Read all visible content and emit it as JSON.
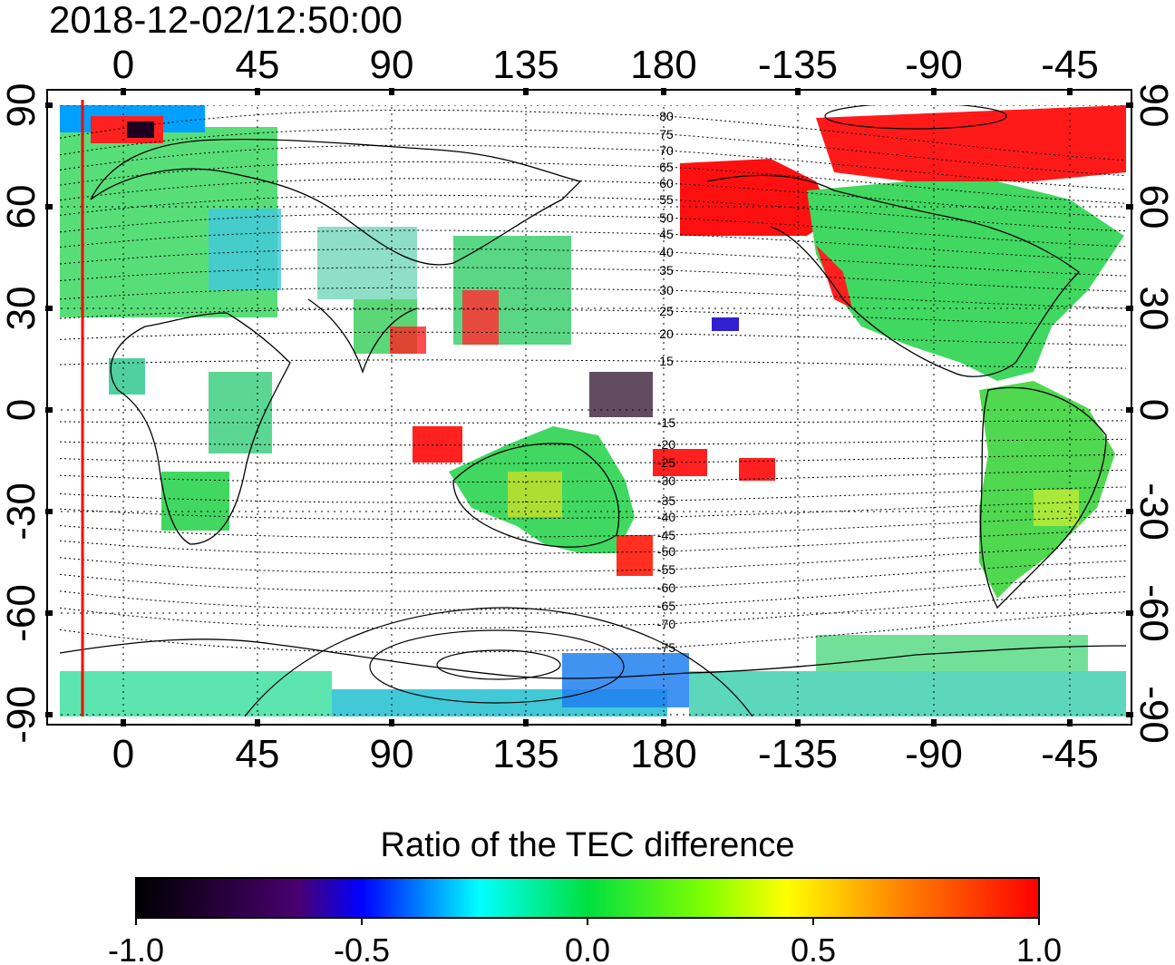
{
  "timestamp": "2018-12-02/12:50:00",
  "map": {
    "lon_tick_labels": [
      "0",
      "45",
      "90",
      "135",
      "180",
      "-135",
      "-90",
      "-45"
    ],
    "lat_tick_labels": [
      "90",
      "60",
      "30",
      "0",
      "-30",
      "-60",
      "-90"
    ],
    "magnetic_lat_labels": [
      "80",
      "75",
      "70",
      "65",
      "60",
      "55",
      "50",
      "45",
      "40",
      "35",
      "30",
      "25",
      "20",
      "15",
      "-15",
      "-20",
      "-25",
      "-30",
      "-35",
      "-40",
      "-45",
      "-50",
      "-55",
      "-60",
      "-65",
      "-70",
      "-75"
    ],
    "terminator_color": "#ff0000",
    "data_colors": {
      "strong_positive": "#ff0000",
      "positive": "#ffff00",
      "neutral": "#00d040",
      "negative": "#00e0ff",
      "strong_negative": "#0000ff",
      "extreme_negative": "#200020"
    }
  },
  "colorbar": {
    "title": "Ratio of the TEC difference",
    "tick_labels": [
      "-1.0",
      "-0.5",
      "0.0",
      "0.5",
      "1.0"
    ],
    "stops": [
      "#000000",
      "#4a0070",
      "#0000ff",
      "#00ffff",
      "#00e000",
      "#ffff00",
      "#ff0000"
    ]
  }
}
